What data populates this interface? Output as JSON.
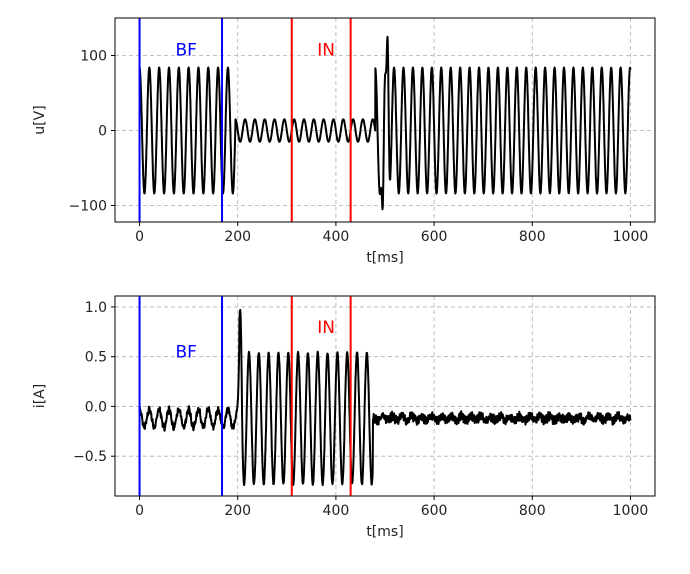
{
  "chart_data": [
    {
      "type": "line",
      "xlabel": "t[ms]",
      "ylabel": "u[V]",
      "xlim": [
        -50,
        1050
      ],
      "ylim": [
        -122,
        150
      ],
      "xticks": [
        0,
        200,
        400,
        600,
        800,
        1000
      ],
      "yticks": [
        -100,
        0,
        100
      ],
      "ytick_labels": [
        "−100",
        "0",
        "100"
      ],
      "grid": true,
      "line_color": "#000000",
      "signal_segments": [
        {
          "t_start": 0,
          "t_end": 195,
          "amplitude": 84,
          "frequency_hz": 50,
          "offset": 0,
          "noise": 0
        },
        {
          "t_start": 195,
          "t_end": 480,
          "amplitude": 15,
          "frequency_hz": 50,
          "offset": 0,
          "noise": 0
        },
        {
          "t_start": 480,
          "t_end": 1000,
          "amplitude": 84,
          "frequency_hz": 52,
          "offset": 0,
          "noise": 0
        }
      ],
      "transient_peaks": [
        {
          "t": 505,
          "value": 125
        },
        {
          "t": 495,
          "value": -105
        }
      ],
      "markers": [
        {
          "t": 0,
          "color": "#0000ff"
        },
        {
          "t": 168,
          "color": "#0000ff"
        },
        {
          "t": 310,
          "color": "#ff0000"
        },
        {
          "t": 430,
          "color": "#ff0000"
        }
      ],
      "annotations": [
        {
          "text": "BF",
          "t": 95,
          "value": 108,
          "color": "#0000ff"
        },
        {
          "text": "IN",
          "t": 380,
          "value": 108,
          "color": "#ff0000"
        }
      ]
    },
    {
      "type": "line",
      "xlabel": "t[ms]",
      "ylabel": "i[A]",
      "xlim": [
        -50,
        1050
      ],
      "ylim": [
        -0.9,
        1.11
      ],
      "xticks": [
        0,
        200,
        400,
        600,
        800,
        1000
      ],
      "yticks": [
        -0.5,
        0.0,
        0.5,
        1.0
      ],
      "ytick_labels": [
        "−0.5",
        "0.0",
        "0.5",
        "1.0"
      ],
      "grid": true,
      "line_color": "#000000",
      "signal_segments": [
        {
          "t_start": 0,
          "t_end": 203,
          "amplitude": 0.09,
          "frequency_hz": 50,
          "offset": -0.12,
          "noise": 0.03
        },
        {
          "t_start": 203,
          "t_end": 475,
          "amplitude": 0.66,
          "frequency_hz": 50,
          "offset": -0.12,
          "noise": 0.01
        },
        {
          "t_start": 475,
          "t_end": 1000,
          "amplitude": 0.02,
          "frequency_hz": 50,
          "offset": -0.12,
          "noise": 0.04
        }
      ],
      "transient_peaks": [
        {
          "t": 205,
          "value": 0.97
        }
      ],
      "markers": [
        {
          "t": 0,
          "color": "#0000ff"
        },
        {
          "t": 168,
          "color": "#0000ff"
        },
        {
          "t": 310,
          "color": "#ff0000"
        },
        {
          "t": 430,
          "color": "#ff0000"
        }
      ],
      "annotations": [
        {
          "text": "BF",
          "t": 95,
          "value": 0.55,
          "color": "#0000ff"
        },
        {
          "text": "IN",
          "t": 380,
          "value": 0.8,
          "color": "#ff0000"
        }
      ]
    }
  ]
}
